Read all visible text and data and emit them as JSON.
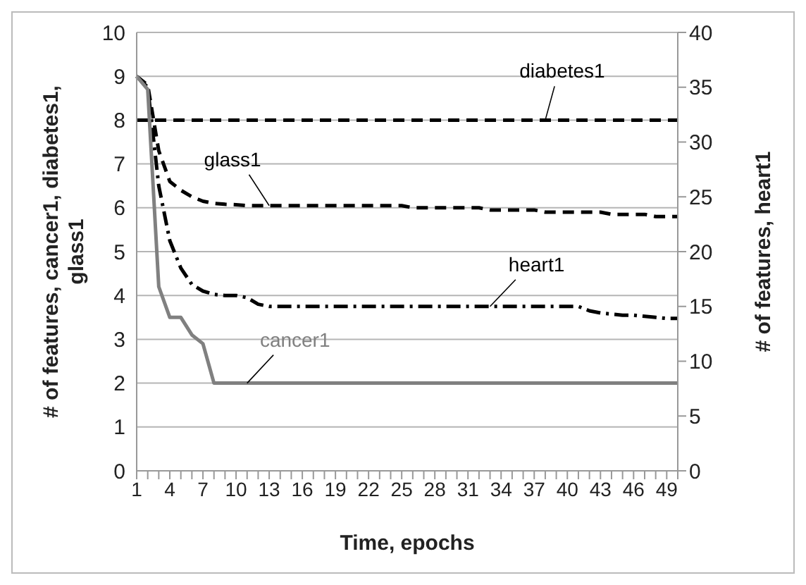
{
  "chart_data": {
    "type": "line",
    "xlabel": "Time, epochs",
    "ylabel": "# of features, cancer1, diabetes1, glass1",
    "y2label": "# of features, heart1",
    "categories": [
      "1",
      null,
      null,
      "4",
      null,
      null,
      "7",
      null,
      null,
      "10",
      null,
      null,
      "13",
      null,
      null,
      "16",
      null,
      null,
      "19",
      null,
      null,
      "22",
      null,
      null,
      "25",
      null,
      null,
      "28",
      null,
      null,
      "31",
      null,
      null,
      "34",
      null,
      null,
      "37",
      null,
      null,
      "40",
      null,
      null,
      "43",
      null,
      null,
      "46",
      null,
      null,
      "49",
      null
    ],
    "series": [
      {
        "name": "diabetes1",
        "color": "#000000",
        "line_style": "dashed",
        "values": [
          8,
          8,
          8,
          8,
          8,
          8,
          8,
          8,
          8,
          8,
          8,
          8,
          8,
          8,
          8,
          8,
          8,
          8,
          8,
          8,
          8,
          8,
          8,
          8,
          8,
          8,
          8,
          8,
          8,
          8,
          8,
          8,
          8,
          8,
          8,
          8,
          8,
          8,
          8,
          8,
          8,
          8,
          8,
          8,
          8,
          8,
          8,
          8,
          8,
          8
        ]
      },
      {
        "name": "glass1",
        "color": "#000000",
        "line_style": "dashed",
        "values": [
          9,
          8.8,
          7.3,
          6.6,
          6.4,
          6.25,
          6.15,
          6.1,
          6.08,
          6.07,
          6.05,
          6.05,
          6.05,
          6.05,
          6.05,
          6.05,
          6.05,
          6.05,
          6.05,
          6.05,
          6.05,
          6.05,
          6.05,
          6.05,
          6.05,
          6.0,
          6.0,
          6.0,
          6.0,
          6.0,
          6.0,
          6.0,
          5.95,
          5.95,
          5.95,
          5.95,
          5.95,
          5.9,
          5.9,
          5.9,
          5.9,
          5.9,
          5.9,
          5.85,
          5.85,
          5.85,
          5.85,
          5.8,
          5.8,
          5.8
        ]
      },
      {
        "name": "heart1",
        "color": "#000000",
        "line_style": "dashdot",
        "axis": "y2",
        "values": [
          36,
          35,
          26,
          21,
          18.5,
          17,
          16.4,
          16.1,
          16,
          16,
          15.8,
          15.2,
          15,
          15,
          15,
          15,
          15,
          15,
          15,
          15,
          15,
          15,
          15,
          15,
          15,
          15,
          15,
          15,
          15,
          15,
          15,
          15,
          15,
          15,
          15,
          15,
          15,
          15,
          15,
          15,
          15,
          14.6,
          14.4,
          14.3,
          14.2,
          14.2,
          14.1,
          14,
          13.9,
          13.9
        ]
      },
      {
        "name": "cancer1",
        "color": "#808080",
        "line_style": "solid",
        "values": [
          9,
          8.7,
          4.2,
          3.5,
          3.5,
          3.1,
          2.9,
          2,
          2,
          2,
          2,
          2,
          2,
          2,
          2,
          2,
          2,
          2,
          2,
          2,
          2,
          2,
          2,
          2,
          2,
          2,
          2,
          2,
          2,
          2,
          2,
          2,
          2,
          2,
          2,
          2,
          2,
          2,
          2,
          2,
          2,
          2,
          2,
          2,
          2,
          2,
          2,
          2,
          2,
          2
        ]
      }
    ],
    "ylim": [
      0,
      10
    ],
    "yticks": [
      0,
      1,
      2,
      3,
      4,
      5,
      6,
      7,
      8,
      9,
      10
    ],
    "y2lim": [
      0,
      40
    ],
    "y2ticks": [
      0,
      5,
      10,
      15,
      20,
      25,
      30,
      35,
      40
    ],
    "grid": "y",
    "legend": false,
    "marker": "none"
  }
}
